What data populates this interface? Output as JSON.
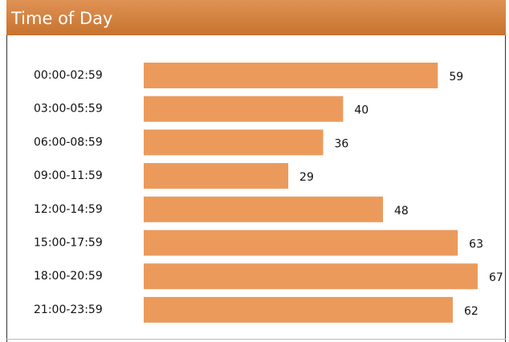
{
  "chart_data": {
    "type": "bar",
    "orientation": "horizontal",
    "title": "Time of Day",
    "categories": [
      "00:00-02:59",
      "03:00-05:59",
      "06:00-08:59",
      "09:00-11:59",
      "12:00-14:59",
      "15:00-17:59",
      "18:00-20:59",
      "21:00-23:59"
    ],
    "values": [
      59,
      40,
      36,
      29,
      48,
      63,
      67,
      62
    ],
    "color": "#eb9a5c"
  }
}
